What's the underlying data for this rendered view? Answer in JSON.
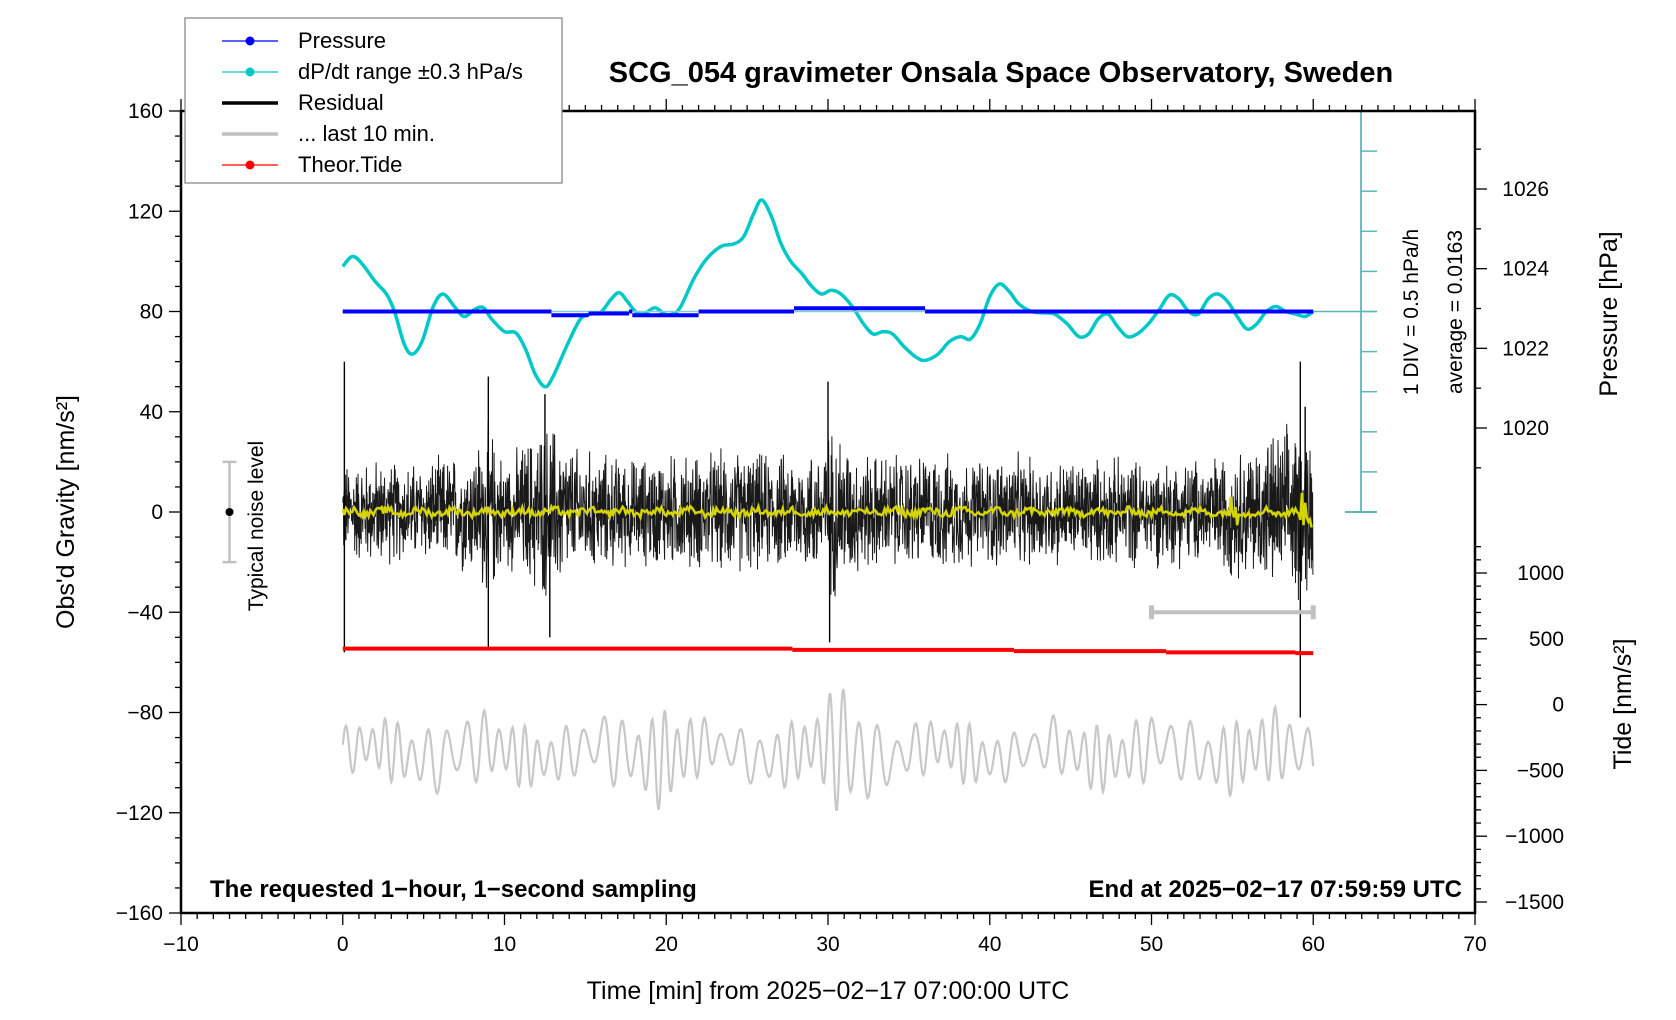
{
  "chart_data": {
    "type": "line",
    "title": "SCG_054 gravimeter Onsala Space Observatory, Sweden",
    "xlabel": "Time [min] from 2025−02−17 07:00:00 UTC",
    "ylabel_left": "Obs'd Gravity [nm/s²]",
    "ylabel_right_top": "Pressure [hPa]",
    "ylabel_right_bottom": "Tide [nm/s²]",
    "xlim": [
      -10,
      70
    ],
    "ylim_left": [
      -160,
      160
    ],
    "x_ticks": [
      -10,
      0,
      10,
      20,
      30,
      40,
      50,
      60,
      70
    ],
    "x_tick_labels": [
      "−10",
      "0",
      "10",
      "20",
      "30",
      "40",
      "50",
      "60",
      "70"
    ],
    "y_left_ticks": [
      160,
      120,
      80,
      40,
      0,
      -40,
      -80,
      -120,
      -160
    ],
    "y_left_tick_labels": [
      "160",
      "120",
      "80",
      "40",
      "0",
      "−40",
      "−80",
      "−120",
      "−160"
    ],
    "pressure_axis": {
      "ticks": [
        1026,
        1024,
        1022,
        1020
      ],
      "tick_labels": [
        "1026",
        "1024",
        "1022",
        "1020"
      ],
      "note": "1026 hPa aligns with gravity ≈ 128.7; 1 hPa ≈ 15.9 nm/s² of plot height"
    },
    "tide_axis": {
      "ticks": [
        1000,
        500,
        0,
        -500,
        -1000,
        -1500
      ],
      "tick_labels": [
        "1000",
        "500",
        "0",
        "−500",
        "−1000",
        "−1500"
      ],
      "range": [
        -1500,
        1170
      ]
    },
    "grid": false,
    "legend": {
      "position": "top-left",
      "entries": [
        {
          "label": "Pressure",
          "color": "#0000ff",
          "marker": true
        },
        {
          "label": "dP/dt range ±0.3 hPa/s",
          "color": "#00c8c8",
          "marker": true
        },
        {
          "label": "Residual",
          "color": "#000000",
          "marker": false
        },
        {
          "label": "... last 10 min.",
          "color": "#c0c0c0",
          "marker": false
        },
        {
          "label": "Theor.Tide",
          "color": "#ff0000",
          "marker": true
        }
      ]
    },
    "annotations": {
      "bottom_left": "The requested 1−hour, 1−second sampling",
      "bottom_right": "End at 2025−02−17 07:59:59 UTC",
      "noise_label": "Typical noise level",
      "noise_bar": {
        "x": -7,
        "center": 0,
        "half_range": 20
      },
      "dpdt_scale": "1 DIV = 0.5 hPa/h",
      "dpdt_average": "average = 0.0163",
      "last10_bar": {
        "x_start": 50,
        "x_end": 60,
        "y": -40
      }
    },
    "series": [
      {
        "name": "Pressure",
        "color": "#0000ff",
        "axis": "left-equivalent",
        "steps": [
          {
            "x0": 0,
            "x1": 12.9,
            "y": 80
          },
          {
            "x0": 12.9,
            "x1": 15.2,
            "y": 78.5
          },
          {
            "x0": 15.2,
            "x1": 17.7,
            "y": 79.2
          },
          {
            "x0": 17.7,
            "x1": 17.9,
            "y": 80
          },
          {
            "x0": 17.9,
            "x1": 22.0,
            "y": 78.5
          },
          {
            "x0": 22.0,
            "x1": 27.9,
            "y": 80
          },
          {
            "x0": 27.9,
            "x1": 36.0,
            "y": 81.3
          },
          {
            "x0": 36.0,
            "x1": 60,
            "y": 80
          }
        ]
      },
      {
        "name": "dP/dt range ±0.3 hPa/s",
        "color": "#00c8c8",
        "axis": "left-equivalent",
        "points": [
          [
            0,
            98
          ],
          [
            0.6,
            102
          ],
          [
            1.2,
            99
          ],
          [
            2.0,
            92
          ],
          [
            2.7,
            87
          ],
          [
            3.2,
            80
          ],
          [
            3.8,
            67
          ],
          [
            4.3,
            63
          ],
          [
            4.9,
            68
          ],
          [
            5.6,
            82
          ],
          [
            6.2,
            87
          ],
          [
            6.9,
            82
          ],
          [
            7.5,
            78
          ],
          [
            8.2,
            81
          ],
          [
            8.7,
            81.5
          ],
          [
            9.2,
            77
          ],
          [
            10.0,
            72
          ],
          [
            10.7,
            71.5
          ],
          [
            11.3,
            65
          ],
          [
            11.9,
            55
          ],
          [
            12.5,
            50
          ],
          [
            13.0,
            54
          ],
          [
            13.9,
            67
          ],
          [
            14.7,
            77
          ],
          [
            15.4,
            79
          ],
          [
            16.0,
            80
          ],
          [
            16.6,
            85
          ],
          [
            17.1,
            87.5
          ],
          [
            17.6,
            84
          ],
          [
            18.1,
            80
          ],
          [
            18.6,
            79
          ],
          [
            19.3,
            81.5
          ],
          [
            19.9,
            79
          ],
          [
            20.4,
            79
          ],
          [
            20.9,
            82
          ],
          [
            21.7,
            93
          ],
          [
            22.5,
            101
          ],
          [
            23.4,
            106
          ],
          [
            24.2,
            107
          ],
          [
            24.8,
            110
          ],
          [
            25.4,
            119
          ],
          [
            25.9,
            124.5
          ],
          [
            26.5,
            118
          ],
          [
            27.1,
            107
          ],
          [
            27.7,
            100
          ],
          [
            28.4,
            95
          ],
          [
            29.0,
            90
          ],
          [
            29.6,
            87
          ],
          [
            30.2,
            88.5
          ],
          [
            30.8,
            87
          ],
          [
            31.5,
            82
          ],
          [
            32.2,
            75
          ],
          [
            32.8,
            71
          ],
          [
            33.4,
            72
          ],
          [
            34.0,
            71
          ],
          [
            34.7,
            66
          ],
          [
            35.4,
            62
          ],
          [
            36.0,
            60.5
          ],
          [
            36.8,
            63
          ],
          [
            37.5,
            68
          ],
          [
            38.2,
            70
          ],
          [
            38.8,
            69
          ],
          [
            39.4,
            75
          ],
          [
            40.0,
            86
          ],
          [
            40.6,
            91
          ],
          [
            41.2,
            88
          ],
          [
            41.8,
            83
          ],
          [
            42.6,
            80
          ],
          [
            43.3,
            79.5
          ],
          [
            44.0,
            79
          ],
          [
            44.8,
            75
          ],
          [
            45.5,
            70
          ],
          [
            46.1,
            71
          ],
          [
            46.7,
            77
          ],
          [
            47.3,
            79
          ],
          [
            47.9,
            74
          ],
          [
            48.5,
            70
          ],
          [
            49.1,
            71
          ],
          [
            49.8,
            75
          ],
          [
            50.5,
            81
          ],
          [
            51.1,
            86.5
          ],
          [
            51.7,
            85
          ],
          [
            52.3,
            80
          ],
          [
            52.9,
            79
          ],
          [
            53.5,
            85
          ],
          [
            54.1,
            87
          ],
          [
            54.7,
            84
          ],
          [
            55.3,
            78
          ],
          [
            55.9,
            73
          ],
          [
            56.5,
            75
          ],
          [
            57.1,
            80
          ],
          [
            57.7,
            82
          ],
          [
            58.3,
            80
          ],
          [
            58.9,
            79
          ],
          [
            59.5,
            78
          ],
          [
            60,
            80
          ]
        ]
      },
      {
        "name": "Residual",
        "color": "#000000",
        "axis": "left",
        "description": "1-second residual noise, envelope approx ±25 nm/s² with bursts to ±50 near 9, 12.5, 30 and 59 min",
        "envelope": [
          [
            0,
            22
          ],
          [
            2,
            24
          ],
          [
            4,
            22
          ],
          [
            6,
            24
          ],
          [
            8,
            28
          ],
          [
            9,
            40
          ],
          [
            10,
            24
          ],
          [
            11,
            30
          ],
          [
            12,
            38
          ],
          [
            13,
            40
          ],
          [
            14,
            30
          ],
          [
            16,
            26
          ],
          [
            18,
            24
          ],
          [
            20,
            26
          ],
          [
            22,
            26
          ],
          [
            24,
            28
          ],
          [
            26,
            26
          ],
          [
            28,
            26
          ],
          [
            29.5,
            30
          ],
          [
            30.5,
            40
          ],
          [
            31.5,
            28
          ],
          [
            33,
            26
          ],
          [
            35,
            26
          ],
          [
            37,
            26
          ],
          [
            39,
            24
          ],
          [
            41,
            26
          ],
          [
            43,
            24
          ],
          [
            45,
            24
          ],
          [
            47,
            24
          ],
          [
            49,
            24
          ],
          [
            51,
            24
          ],
          [
            53,
            24
          ],
          [
            55,
            28
          ],
          [
            56,
            30
          ],
          [
            57,
            34
          ],
          [
            58,
            36
          ],
          [
            59,
            40
          ],
          [
            60,
            38
          ]
        ],
        "spikes": [
          [
            0.1,
            60
          ],
          [
            0.1,
            -56
          ],
          [
            9.0,
            54
          ],
          [
            9.0,
            -54
          ],
          [
            12.5,
            47
          ],
          [
            12.8,
            -50
          ],
          [
            30.0,
            52
          ],
          [
            30.1,
            -52
          ],
          [
            59.2,
            60
          ],
          [
            59.2,
            -82
          ],
          [
            59.5,
            42
          ]
        ]
      },
      {
        "name": "Residual smoothed",
        "color": "#d4d400",
        "axis": "left",
        "description": "near-zero smoothed residual, wiggles within ±3, larger near 55 and 59.5 min"
      },
      {
        "name": "Theor.Tide",
        "color": "#ff0000",
        "axis": "left-equivalent",
        "steps": [
          {
            "x0": 0,
            "x1": 27.8,
            "y": -54.5
          },
          {
            "x0": 27.8,
            "x1": 41.5,
            "y": -55.0
          },
          {
            "x0": 41.5,
            "x1": 50.9,
            "y": -55.5
          },
          {
            "x0": 50.9,
            "x1": 58.9,
            "y": -56.0
          },
          {
            "x0": 58.9,
            "x1": 60,
            "y": -56.3
          }
        ]
      },
      {
        "name": "Tide residual (grey)",
        "color": "#c8c8c8",
        "axis": "left-equivalent",
        "description": "oscillating trace centered near −96 nm/s², amplitude ~±15, bursts to ±30 around 20 and 31 min",
        "center": -96,
        "envelope": [
          [
            0,
            10
          ],
          [
            3,
            13
          ],
          [
            6,
            14
          ],
          [
            8,
            15
          ],
          [
            10,
            14
          ],
          [
            12,
            12
          ],
          [
            14,
            11
          ],
          [
            16,
            13
          ],
          [
            17,
            16
          ],
          [
            19,
            16
          ],
          [
            20,
            24
          ],
          [
            21,
            18
          ],
          [
            22,
            12
          ],
          [
            24,
            9
          ],
          [
            26,
            13
          ],
          [
            28,
            13
          ],
          [
            29,
            16
          ],
          [
            30,
            20
          ],
          [
            31,
            32
          ],
          [
            32,
            24
          ],
          [
            33,
            14
          ],
          [
            35,
            11
          ],
          [
            37,
            12
          ],
          [
            39,
            13
          ],
          [
            40,
            11
          ],
          [
            42,
            9
          ],
          [
            44,
            12
          ],
          [
            46,
            14
          ],
          [
            48,
            13
          ],
          [
            50,
            14
          ],
          [
            52,
            13
          ],
          [
            54,
            14
          ],
          [
            56,
            16
          ],
          [
            58,
            15
          ],
          [
            60,
            14
          ]
        ]
      }
    ]
  }
}
